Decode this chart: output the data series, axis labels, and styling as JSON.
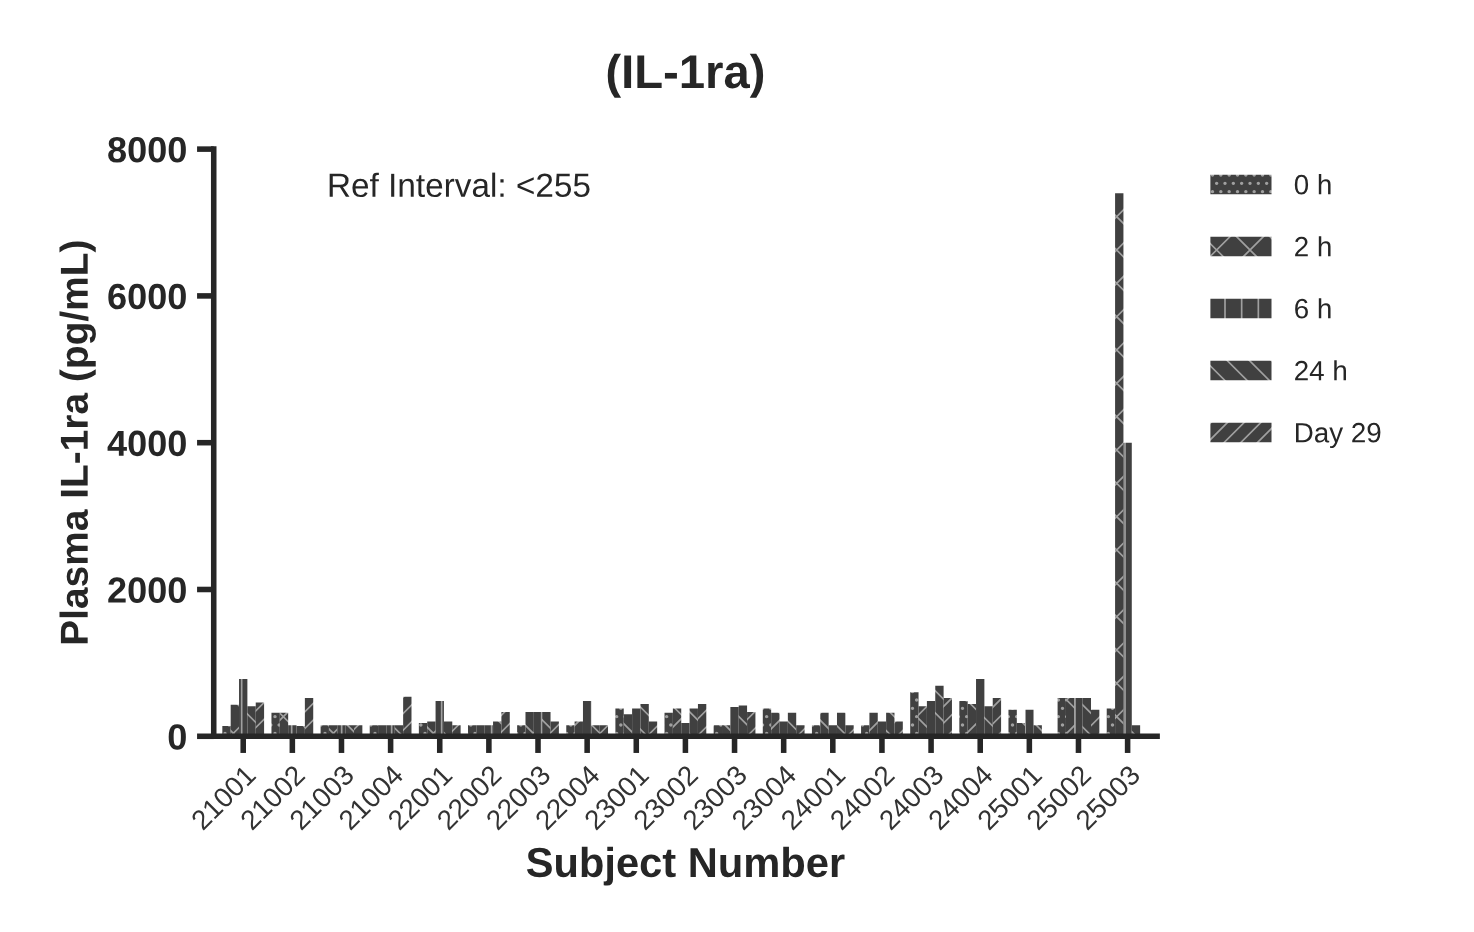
{
  "chart_data": {
    "type": "bar",
    "title": "(IL-1ra)",
    "xlabel": "Subject Number",
    "ylabel": "Plasma IL-1ra (pg/mL)",
    "categories": [
      "21001",
      "21002",
      "21003",
      "21004",
      "22001",
      "22002",
      "22003",
      "22004",
      "23001",
      "23002",
      "23003",
      "23004",
      "24001",
      "24002",
      "24003",
      "24004",
      "25001",
      "25002",
      "25003"
    ],
    "series": [
      {
        "name": "0 h",
        "color": "#404040",
        "values": [
          140,
          320,
          150,
          150,
          180,
          150,
          150,
          150,
          380,
          320,
          150,
          380,
          150,
          150,
          600,
          480,
          360,
          520,
          380
        ]
      },
      {
        "name": "2 h",
        "color": "#404040",
        "values": [
          430,
          320,
          150,
          150,
          200,
          150,
          330,
          200,
          300,
          380,
          150,
          320,
          320,
          320,
          410,
          440,
          180,
          520,
          7400
        ]
      },
      {
        "name": "6 h",
        "color": "#404040",
        "values": [
          780,
          150,
          150,
          150,
          480,
          150,
          330,
          480,
          380,
          180,
          400,
          200,
          150,
          200,
          480,
          780,
          360,
          520,
          4000
        ]
      },
      {
        "name": "24 h",
        "color": "#404040",
        "values": [
          410,
          140,
          150,
          150,
          200,
          200,
          330,
          150,
          440,
          380,
          420,
          320,
          320,
          320,
          690,
          410,
          150,
          520,
          150
        ]
      },
      {
        "name": "Day 29",
        "color": "#404040",
        "values": [
          460,
          520,
          150,
          540,
          150,
          330,
          200,
          150,
          200,
          440,
          330,
          150,
          150,
          200,
          520,
          520,
          null,
          360,
          null
        ]
      }
    ],
    "ylim": [
      0,
      8000
    ],
    "yticks": [
      0,
      2000,
      4000,
      6000,
      8000
    ],
    "grid": false,
    "legend": "right",
    "annotations": [
      "Ref Interval: <255"
    ]
  }
}
